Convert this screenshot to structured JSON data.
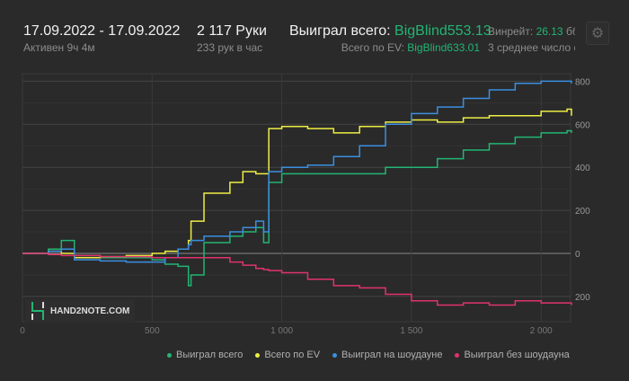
{
  "header": {
    "date_range": "17.09.2022 - 17.09.2022",
    "active": "Активен 9ч 4м",
    "hands": "2 117 Руки",
    "hands_per_hour": "233 рук в час",
    "won_label": "Выиграл всего:",
    "won_value": "BigBlind553.13",
    "ev_label": "Всего по EV:",
    "ev_value": "BigBlind633.01",
    "winrate_label": "Винрейт:",
    "winrate_value": "26.13",
    "winrate_unit": "бб",
    "avg_text": "3 среднее число с",
    "settings_icon": "gear-icon"
  },
  "watermark": "HAND2NOTE.COM",
  "chart_data": {
    "type": "line",
    "xlim": [
      0,
      2117
    ],
    "ylim": [
      -260,
      830
    ],
    "x_ticks": [
      0,
      500,
      1000,
      1500,
      2000
    ],
    "x_tick_labels": [
      "0",
      "500",
      "1 000",
      "1 500",
      "2 000"
    ],
    "y_ticks": [
      -200,
      0,
      200,
      400,
      600,
      800
    ],
    "y_tick_labels": [
      "200",
      "0",
      "200",
      "400",
      "600",
      "800"
    ],
    "grid": true,
    "legend": "bottom-right",
    "x": [
      0,
      100,
      150,
      200,
      300,
      400,
      500,
      550,
      600,
      640,
      650,
      700,
      800,
      850,
      900,
      930,
      950,
      1000,
      1100,
      1200,
      1300,
      1400,
      1500,
      1600,
      1700,
      1800,
      1900,
      2000,
      2100,
      2117
    ],
    "series": [
      {
        "name": "Выиграл всего",
        "color": "#22b573",
        "values": [
          0,
          20,
          60,
          -10,
          -20,
          -20,
          -30,
          -50,
          -60,
          -150,
          -100,
          50,
          80,
          100,
          120,
          50,
          330,
          370,
          370,
          370,
          370,
          400,
          400,
          440,
          480,
          510,
          540,
          560,
          570,
          560
        ]
      },
      {
        "name": "Всего по EV",
        "color": "#eeee44",
        "values": [
          0,
          10,
          0,
          -20,
          -15,
          -10,
          0,
          10,
          20,
          60,
          150,
          280,
          330,
          380,
          370,
          370,
          580,
          590,
          580,
          560,
          590,
          610,
          620,
          610,
          630,
          640,
          640,
          660,
          670,
          640
        ]
      },
      {
        "name": "Выиграл на шоудауне",
        "color": "#3b8fe0",
        "values": [
          0,
          10,
          20,
          -30,
          -35,
          -40,
          -40,
          -20,
          20,
          40,
          60,
          80,
          100,
          120,
          150,
          100,
          380,
          400,
          410,
          450,
          500,
          600,
          650,
          680,
          720,
          760,
          790,
          800,
          800,
          790
        ]
      },
      {
        "name": "Выиграл без шоудауна",
        "color": "#e0336b",
        "values": [
          0,
          -5,
          -10,
          -10,
          -15,
          -15,
          -20,
          -20,
          -20,
          -20,
          -20,
          -20,
          -40,
          -55,
          -70,
          -75,
          -80,
          -90,
          -120,
          -150,
          -160,
          -190,
          -220,
          -240,
          -230,
          -240,
          -220,
          -230,
          -230,
          -240
        ]
      }
    ]
  }
}
